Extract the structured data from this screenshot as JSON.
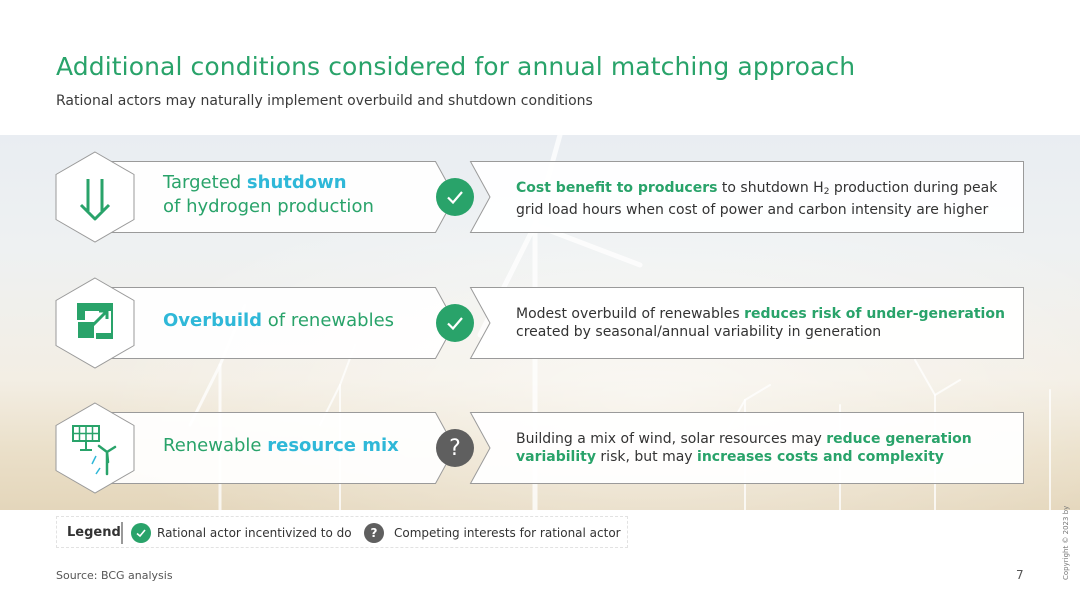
{
  "title": "Additional conditions considered for annual matching approach",
  "subtitle": "Rational actors may naturally implement overbuild and shutdown conditions",
  "rows": [
    {
      "icon": "arrow-down-icon",
      "label_parts": [
        {
          "text": "Targeted ",
          "accent": false
        },
        {
          "text": "shutdown",
          "accent": true
        },
        {
          "text": "of hydrogen production",
          "accent": false
        }
      ],
      "status": "check",
      "desc_parts": [
        {
          "text": "Cost benefit to producers",
          "hl": true
        },
        {
          "text": " to shutdown H",
          "hl": false
        },
        {
          "text": "2",
          "hl": false
        },
        {
          "text": " production during peak grid load hours when cost of power and carbon intensity are higher",
          "hl": false
        }
      ]
    },
    {
      "icon": "expand-square-icon",
      "label_parts": [
        {
          "text": "Overbuild",
          "accent": true
        },
        {
          "text": " of renewables",
          "accent": false
        }
      ],
      "status": "check",
      "desc_parts": [
        {
          "text": "Modest overbuild of renewables ",
          "hl": false
        },
        {
          "text": "reduces risk of under-generation",
          "hl": true
        },
        {
          "text": " created by seasonal/annual variability in generation",
          "hl": false
        }
      ]
    },
    {
      "icon": "solar-wind-icon",
      "label_parts": [
        {
          "text": "Renewable ",
          "accent": false
        },
        {
          "text": "resource mix",
          "accent": true
        }
      ],
      "status": "question",
      "desc_parts": [
        {
          "text": "Building a mix of wind, solar resources may ",
          "hl": false
        },
        {
          "text": "reduce generation variability",
          "hl": true
        },
        {
          "text": " risk, but may ",
          "hl": false
        },
        {
          "text": "increases costs and complexity",
          "hl": true
        }
      ]
    }
  ],
  "legend": {
    "title": "Legend",
    "check_label": "Rational actor incentivized to do",
    "question_label": "Competing interests for rational actor",
    "question_glyph": "?"
  },
  "colors": {
    "green": "#29a36a",
    "blue": "#2fb8d8",
    "gray": "#5f5f5f"
  },
  "footer": {
    "source": "Source: BCG analysis",
    "page": "7",
    "copyright": "Copyright © 2023 by"
  }
}
